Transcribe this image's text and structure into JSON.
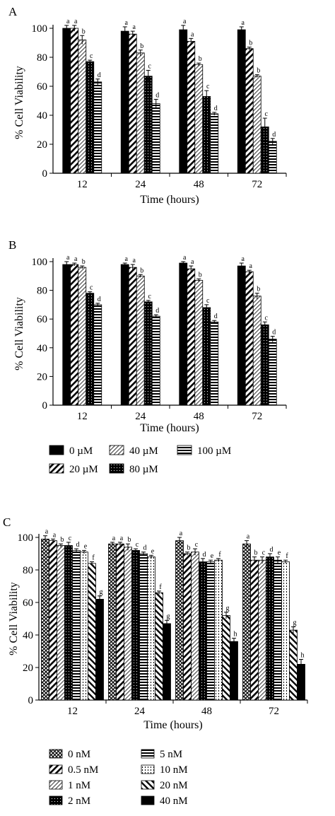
{
  "chart_data": [
    {
      "type": "bar",
      "panel_label": "A",
      "xlabel": "Time (hours)",
      "ylabel": "% Cell Viability",
      "ylim": [
        0,
        100
      ],
      "yticks": [
        0,
        20,
        40,
        60,
        80,
        100
      ],
      "categories": [
        "12",
        "24",
        "48",
        "72"
      ],
      "series": [
        {
          "name": "0 µM",
          "pattern": "solid",
          "values": [
            100,
            98,
            99,
            99
          ],
          "errors": [
            2,
            3,
            3,
            2
          ],
          "letters": [
            "a",
            "a",
            "a",
            "a"
          ]
        },
        {
          "name": "20 µM",
          "pattern": "diag",
          "values": [
            100,
            96,
            91,
            86
          ],
          "errors": [
            2,
            2,
            2,
            1
          ],
          "letters": [
            "a",
            "a",
            "a",
            "b"
          ]
        },
        {
          "name": "40 µM",
          "pattern": "diagthin",
          "values": [
            92,
            83,
            75,
            67
          ],
          "errors": [
            3,
            2,
            1,
            1
          ],
          "letters": [
            "b",
            "b",
            "b",
            "b"
          ]
        },
        {
          "name": "80 µM",
          "pattern": "dots",
          "values": [
            77,
            67,
            53,
            32
          ],
          "errors": [
            1,
            4,
            4,
            6
          ],
          "letters": [
            "c",
            "c",
            "c",
            "c"
          ]
        },
        {
          "name": "100 µM",
          "pattern": "hlines",
          "values": [
            63,
            48,
            41,
            22
          ],
          "errors": [
            2,
            3,
            1,
            2
          ],
          "letters": [
            "d",
            "d",
            "d",
            "d"
          ]
        }
      ]
    },
    {
      "type": "bar",
      "panel_label": "B",
      "xlabel": "Time (hours)",
      "ylabel": "% Cell Viability",
      "ylim": [
        0,
        100
      ],
      "yticks": [
        0,
        20,
        40,
        60,
        80,
        100
      ],
      "categories": [
        "12",
        "24",
        "48",
        "72"
      ],
      "series": [
        {
          "name": "0 µM",
          "pattern": "solid",
          "values": [
            98,
            98,
            99,
            97
          ],
          "errors": [
            2,
            1,
            1,
            2
          ],
          "letters": [
            "a",
            "a",
            "a",
            "a"
          ]
        },
        {
          "name": "20 µM",
          "pattern": "diag",
          "values": [
            98,
            96,
            95,
            93
          ],
          "errors": [
            1,
            2,
            2,
            1
          ],
          "letters": [
            "a",
            "a",
            "a",
            "a"
          ]
        },
        {
          "name": "40 µM",
          "pattern": "diagthin",
          "values": [
            96,
            90,
            87,
            76
          ],
          "errors": [
            1,
            1,
            1,
            2
          ],
          "letters": [
            "b",
            "b",
            "b",
            "b"
          ]
        },
        {
          "name": "80 µM",
          "pattern": "dots",
          "values": [
            78,
            72,
            68,
            56
          ],
          "errors": [
            1,
            1,
            2,
            2
          ],
          "letters": [
            "c",
            "c",
            "c",
            "c"
          ]
        },
        {
          "name": "100 µM",
          "pattern": "hlines",
          "values": [
            70,
            62,
            58,
            46
          ],
          "errors": [
            1,
            1,
            1,
            2
          ],
          "letters": [
            "d",
            "d",
            "d",
            "d"
          ]
        }
      ],
      "legend": {
        "items": [
          {
            "label": "0 µM",
            "pattern": "solid"
          },
          {
            "label": "40 µM",
            "pattern": "diagthin"
          },
          {
            "label": "100 µM",
            "pattern": "hlines"
          },
          {
            "label": "20 µM",
            "pattern": "diag"
          },
          {
            "label": "80 µM",
            "pattern": "dots"
          }
        ]
      }
    },
    {
      "type": "bar",
      "panel_label": "C",
      "xlabel": "Time (hours)",
      "ylabel": "% Cell Viability",
      "ylim": [
        0,
        100
      ],
      "yticks": [
        0,
        20,
        40,
        60,
        80,
        100
      ],
      "categories": [
        "12",
        "24",
        "48",
        "72"
      ],
      "series": [
        {
          "name": "0 nM",
          "pattern": "cross",
          "values": [
            99,
            96,
            98,
            96
          ],
          "errors": [
            2,
            1,
            2,
            2
          ],
          "letters": [
            "a",
            "a",
            "a",
            "a"
          ]
        },
        {
          "name": "0.5 nM",
          "pattern": "diag",
          "values": [
            98,
            96,
            90,
            86
          ],
          "errors": [
            1,
            1,
            1,
            2
          ],
          "letters": [
            "a",
            "a",
            "b",
            "b"
          ]
        },
        {
          "name": "1 nM",
          "pattern": "diagthin",
          "values": [
            95,
            94,
            91,
            86
          ],
          "errors": [
            1,
            2,
            2,
            2
          ],
          "letters": [
            "b",
            "b",
            "c",
            "c"
          ]
        },
        {
          "name": "2 nM",
          "pattern": "dots",
          "values": [
            95,
            92,
            85,
            88
          ],
          "errors": [
            2,
            1,
            2,
            2
          ],
          "letters": [
            "c",
            "c",
            "d",
            "d"
          ]
        },
        {
          "name": "5 nM",
          "pattern": "hlines",
          "values": [
            92,
            90,
            85,
            86
          ],
          "errors": [
            1,
            1,
            1,
            2
          ],
          "letters": [
            "d",
            "d",
            "e",
            "e"
          ]
        },
        {
          "name": "10 nM",
          "pattern": "vdots",
          "values": [
            91,
            88,
            86,
            85
          ],
          "errors": [
            1,
            1,
            1,
            1
          ],
          "letters": [
            "e",
            "e",
            "f",
            "f"
          ]
        },
        {
          "name": "20 nM",
          "pattern": "revdiag",
          "values": [
            84,
            66,
            52,
            43
          ],
          "errors": [
            1,
            1,
            2,
            2
          ],
          "letters": [
            "f",
            "f",
            "g",
            "g"
          ]
        },
        {
          "name": "40 nM",
          "pattern": "solid",
          "values": [
            62,
            47,
            36,
            22
          ],
          "errors": [
            2,
            2,
            2,
            3
          ],
          "letters": [
            "g",
            "g",
            "h",
            "h"
          ]
        }
      ],
      "legend": {
        "items": [
          {
            "label": "0 nM",
            "pattern": "cross"
          },
          {
            "label": "5 nM",
            "pattern": "hlines"
          },
          {
            "label": "0.5 nM",
            "pattern": "diag"
          },
          {
            "label": "10 nM",
            "pattern": "vdots"
          },
          {
            "label": "1 nM",
            "pattern": "diagthin"
          },
          {
            "label": "20 nM",
            "pattern": "revdiag"
          },
          {
            "label": "2 nM",
            "pattern": "dots"
          },
          {
            "label": "40 nM",
            "pattern": "solid"
          }
        ]
      }
    }
  ]
}
